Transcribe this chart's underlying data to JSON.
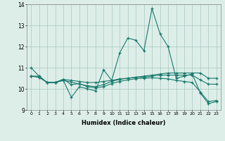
{
  "title": "",
  "xlabel": "Humidex (Indice chaleur)",
  "x": [
    0,
    1,
    2,
    3,
    4,
    5,
    6,
    7,
    8,
    9,
    10,
    11,
    12,
    13,
    14,
    15,
    16,
    17,
    18,
    19,
    20,
    21,
    22,
    23
  ],
  "series1": [
    11.0,
    10.6,
    10.3,
    10.3,
    10.4,
    9.6,
    10.1,
    10.0,
    9.9,
    10.9,
    10.4,
    11.7,
    12.4,
    12.3,
    11.8,
    13.8,
    12.6,
    12.0,
    10.5,
    10.6,
    10.7,
    9.8,
    9.3,
    9.4
  ],
  "series2": [
    10.6,
    10.6,
    10.3,
    10.3,
    10.45,
    10.4,
    10.35,
    10.3,
    10.3,
    10.35,
    10.4,
    10.47,
    10.5,
    10.55,
    10.6,
    10.65,
    10.7,
    10.75,
    10.75,
    10.75,
    10.75,
    10.75,
    10.5,
    10.5
  ],
  "series3": [
    10.6,
    10.55,
    10.3,
    10.3,
    10.45,
    10.2,
    10.25,
    10.1,
    10.05,
    10.1,
    10.25,
    10.35,
    10.42,
    10.48,
    10.5,
    10.52,
    10.5,
    10.47,
    10.4,
    10.35,
    10.3,
    9.85,
    9.4,
    9.45
  ],
  "series4": [
    10.6,
    10.55,
    10.3,
    10.3,
    10.4,
    10.32,
    10.22,
    10.15,
    10.1,
    10.2,
    10.35,
    10.45,
    10.5,
    10.55,
    10.55,
    10.6,
    10.65,
    10.65,
    10.65,
    10.65,
    10.65,
    10.42,
    10.22,
    10.22
  ],
  "line_color": "#1a7a6e",
  "bg_color": "#ddeee8",
  "grid_color": "#a8c8c0",
  "ylim": [
    9,
    14
  ],
  "yticks": [
    9,
    10,
    11,
    12,
    13,
    14
  ]
}
